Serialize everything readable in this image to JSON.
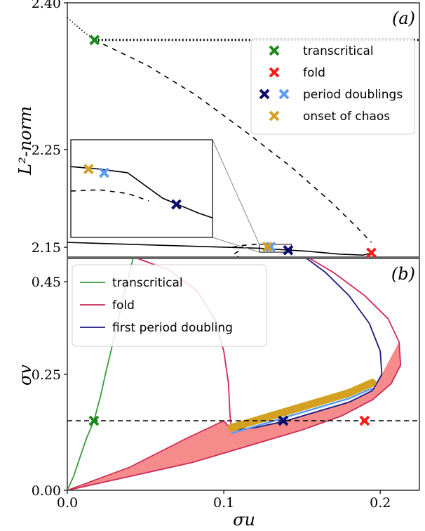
{
  "chart_data": [
    {
      "type": "line",
      "panel_label": "(a)",
      "ylabel": "L²-norm",
      "xlim": [
        0.0,
        0.22
      ],
      "ylim": [
        2.14,
        2.4
      ],
      "ytick_labels": [
        "2.40",
        "2.25",
        "2.15"
      ],
      "yticks": [
        2.4,
        2.25,
        2.15
      ],
      "legend_position": "top-right",
      "colors": {
        "transcritical": "#1b8a1b",
        "fold": "#ff1a1a",
        "period_doubling_1": "#0a0a6e",
        "period_doubling_2": "#5b9cf0",
        "onset_of_chaos": "#d4a020"
      },
      "legend": [
        {
          "label": "transcritical",
          "markers": [
            "transcritical"
          ]
        },
        {
          "label": "fold",
          "markers": [
            "fold"
          ]
        },
        {
          "label": "period doublings",
          "markers": [
            "period_doubling_1",
            "period_doubling_2"
          ]
        },
        {
          "label": "onset of chaos",
          "markers": [
            "onset_of_chaos"
          ]
        }
      ],
      "series": [
        {
          "style": "dotted",
          "points": [
            [
              0.0,
              2.385
            ],
            [
              0.009,
              2.372
            ],
            [
              0.017,
              2.362
            ]
          ]
        },
        {
          "style": "dotted-thick",
          "points": [
            [
              0.017,
              2.362
            ],
            [
              0.22,
              2.362
            ]
          ]
        },
        {
          "style": "dashed",
          "points": [
            [
              0.017,
              2.362
            ],
            [
              0.05,
              2.336
            ],
            [
              0.08,
              2.306
            ],
            [
              0.11,
              2.27
            ],
            [
              0.14,
              2.232
            ],
            [
              0.165,
              2.196
            ],
            [
              0.18,
              2.172
            ],
            [
              0.19,
              2.155
            ]
          ]
        },
        {
          "style": "solid",
          "points": [
            [
              0.0,
              2.155
            ],
            [
              0.06,
              2.152
            ],
            [
              0.12,
              2.149
            ],
            [
              0.15,
              2.146
            ],
            [
              0.17,
              2.143
            ],
            [
              0.185,
              2.142
            ],
            [
              0.19,
              2.1445
            ]
          ]
        },
        {
          "style": "dashed",
          "points": [
            [
              0.103,
              2.15
            ],
            [
              0.11,
              2.152
            ],
            [
              0.117,
              2.153
            ],
            [
              0.122,
              2.153
            ]
          ]
        },
        {
          "style": "dashed",
          "points": [
            [
              0.107,
              2.146
            ],
            [
              0.104,
              2.143
            ],
            [
              0.108,
              2.139
            ]
          ]
        }
      ],
      "markers": [
        {
          "type": "transcritical",
          "x": 0.017,
          "y": 2.362
        },
        {
          "type": "fold",
          "x": 0.19,
          "y": 2.1445
        },
        {
          "type": "period_doubling_1",
          "x": 0.138,
          "y": 2.147
        },
        {
          "type": "period_doubling_2",
          "x": 0.127,
          "y": 2.1505
        },
        {
          "type": "onset_of_chaos",
          "x": 0.125,
          "y": 2.1505
        }
      ],
      "inset": {
        "zoom_region": {
          "x": [
            0.12,
            0.14
          ],
          "y": [
            2.145,
            2.153
          ]
        }
      }
    },
    {
      "type": "line",
      "panel_label": "(b)",
      "xlabel": "σu",
      "ylabel": "σv",
      "xlim": [
        0.0,
        0.225
      ],
      "ylim": [
        0.0,
        0.5
      ],
      "xticks": [
        0.0,
        0.1,
        0.2
      ],
      "xtick_labels": [
        "0.0",
        "0.1",
        "0.2"
      ],
      "yticks": [
        0.0,
        0.25,
        0.45
      ],
      "ytick_labels": [
        "0.00",
        "0.25",
        "0.45"
      ],
      "hline": 0.15,
      "legend_position": "top-left",
      "colors": {
        "transcritical": "#3a9a3a",
        "fold": "#cc2a55",
        "first_period_doubling": "#1a1a80",
        "region": "#f58b8b",
        "chaos": "#d4a020",
        "chaos_edge": "#5b9cf0",
        "marker_transcritical": "#1b8a1b",
        "marker_fold": "#ff1a1a",
        "marker_pd": "#0a0a6e"
      },
      "legend": [
        {
          "label": "transcritical",
          "series": "transcritical"
        },
        {
          "label": "fold",
          "series": "fold"
        },
        {
          "label": "first period doubling",
          "series": "first_period_doubling"
        }
      ],
      "curves": {
        "transcritical": [
          [
            0.0,
            0.0
          ],
          [
            0.004,
            0.03
          ],
          [
            0.008,
            0.07
          ],
          [
            0.012,
            0.11
          ],
          [
            0.017,
            0.15
          ],
          [
            0.021,
            0.2
          ],
          [
            0.025,
            0.26
          ],
          [
            0.03,
            0.33
          ],
          [
            0.036,
            0.42
          ],
          [
            0.042,
            0.5
          ]
        ],
        "fold_upper": [
          [
            0.045,
            0.5
          ],
          [
            0.065,
            0.475
          ],
          [
            0.083,
            0.43
          ],
          [
            0.094,
            0.37
          ],
          [
            0.1,
            0.3
          ],
          [
            0.103,
            0.23
          ],
          [
            0.104,
            0.16
          ],
          [
            0.105,
            0.13
          ]
        ],
        "fold_lower": [
          [
            0.0,
            0.0
          ],
          [
            0.04,
            0.03
          ],
          [
            0.08,
            0.06
          ],
          [
            0.12,
            0.1
          ],
          [
            0.15,
            0.13
          ],
          [
            0.175,
            0.16
          ],
          [
            0.195,
            0.195
          ],
          [
            0.207,
            0.23
          ],
          [
            0.213,
            0.27
          ],
          [
            0.212,
            0.32
          ],
          [
            0.205,
            0.37
          ],
          [
            0.19,
            0.42
          ],
          [
            0.17,
            0.47
          ],
          [
            0.155,
            0.5
          ]
        ],
        "fold_inner_lower": [
          [
            0.0,
            0.0
          ],
          [
            0.04,
            0.05
          ],
          [
            0.075,
            0.11
          ],
          [
            0.1,
            0.15
          ],
          [
            0.105,
            0.13
          ]
        ],
        "period_doubling": [
          [
            0.105,
            0.13
          ],
          [
            0.12,
            0.135
          ],
          [
            0.14,
            0.15
          ],
          [
            0.16,
            0.17
          ],
          [
            0.18,
            0.19
          ],
          [
            0.195,
            0.215
          ],
          [
            0.201,
            0.25
          ],
          [
            0.2,
            0.3
          ],
          [
            0.193,
            0.36
          ],
          [
            0.18,
            0.42
          ],
          [
            0.165,
            0.47
          ],
          [
            0.153,
            0.5
          ]
        ],
        "chaos_band": [
          [
            0.105,
            0.135
          ],
          [
            0.12,
            0.15
          ],
          [
            0.14,
            0.17
          ],
          [
            0.16,
            0.19
          ],
          [
            0.18,
            0.21
          ],
          [
            0.195,
            0.232
          ]
        ]
      },
      "markers": [
        {
          "type": "marker_transcritical",
          "x": 0.017,
          "y": 0.15
        },
        {
          "type": "marker_pd",
          "x": 0.138,
          "y": 0.15
        },
        {
          "type": "marker_fold",
          "x": 0.19,
          "y": 0.15
        }
      ]
    }
  ]
}
